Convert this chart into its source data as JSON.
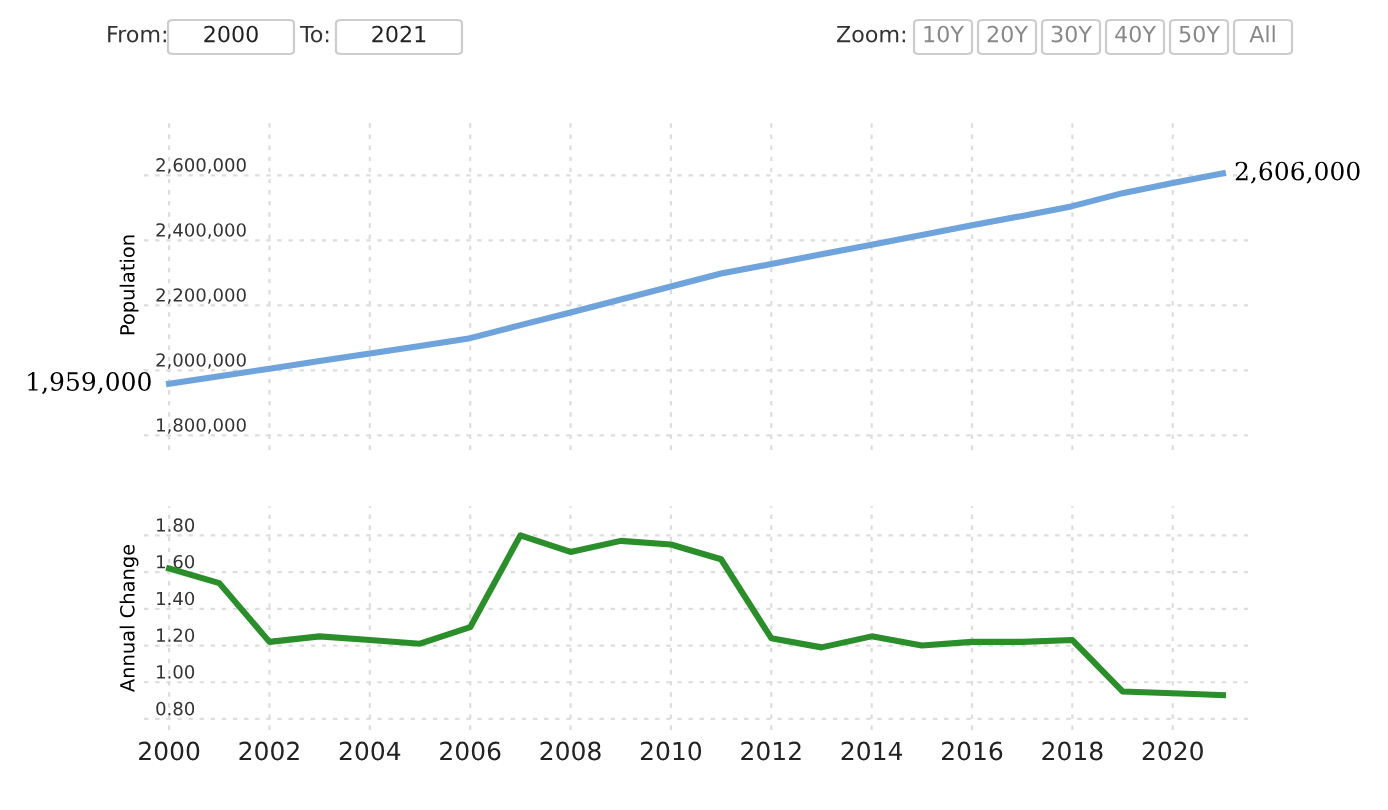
{
  "chart_data": [
    {
      "type": "line",
      "ylabel": "Population",
      "x": [
        2000,
        2001,
        2002,
        2003,
        2004,
        2005,
        2006,
        2007,
        2008,
        2009,
        2010,
        2011,
        2012,
        2013,
        2014,
        2015,
        2016,
        2017,
        2018,
        2019,
        2020,
        2021
      ],
      "series": [
        {
          "color": "#6fa3db",
          "values": [
            1959000,
            1982000,
            2005000,
            2029000,
            2052000,
            2075000,
            2099000,
            2139000,
            2178000,
            2218000,
            2258000,
            2298000,
            2327000,
            2357000,
            2386000,
            2416000,
            2446000,
            2475000,
            2505000,
            2545000,
            2576000,
            2606000
          ]
        }
      ],
      "xlim": [
        1999.5,
        2021.5
      ],
      "ylim": [
        1755000,
        2770000
      ],
      "yticks": [
        {
          "value": 1800000,
          "label": "1,800,000"
        },
        {
          "value": 2000000,
          "label": "2,000,000"
        },
        {
          "value": 2200000,
          "label": "2,200,000"
        },
        {
          "value": 2400000,
          "label": "2,400,000"
        },
        {
          "value": 2600000,
          "label": "2,600,000"
        }
      ],
      "tick_labels": "y",
      "grid": true,
      "line_style": "solid",
      "annotations": [
        {
          "text": "1,959,000",
          "x": 2000,
          "y": 1959000
        },
        {
          "text": "2,606,000",
          "x": 2021,
          "y": 2606000
        },
        "From:",
        "2000",
        "To:",
        "2021",
        "Zoom:",
        "10Y",
        "20Y",
        "30Y",
        "40Y",
        "50Y",
        "All"
      ]
    },
    {
      "type": "line",
      "ylabel": "Annual Change",
      "x": [
        2000,
        2001,
        2002,
        2003,
        2004,
        2005,
        2006,
        2007,
        2008,
        2009,
        2010,
        2011,
        2012,
        2013,
        2014,
        2015,
        2016,
        2017,
        2018,
        2019,
        2020,
        2021
      ],
      "series": [
        {
          "color": "#2a8f2a",
          "values": [
            1.62,
            1.54,
            1.22,
            1.25,
            1.23,
            1.21,
            1.3,
            1.8,
            1.71,
            1.77,
            1.75,
            1.67,
            1.24,
            1.19,
            1.25,
            1.2,
            1.22,
            1.22,
            1.23,
            0.95,
            0.94,
            0.93
          ]
        }
      ],
      "xlim": [
        1999.5,
        2021.5
      ],
      "ylim": [
        0.74,
        1.96
      ],
      "xticks": [
        2000,
        2002,
        2004,
        2006,
        2008,
        2010,
        2012,
        2014,
        2016,
        2018,
        2020
      ],
      "yticks": [
        {
          "value": 0.8,
          "label": "0.80"
        },
        {
          "value": 1.0,
          "label": "1.00"
        },
        {
          "value": 1.2,
          "label": "1.20"
        },
        {
          "value": 1.4,
          "label": "1.40"
        },
        {
          "value": 1.6,
          "label": "1.60"
        },
        {
          "value": 1.8,
          "label": "1.80"
        }
      ],
      "grid": true,
      "line_style": "solid"
    }
  ]
}
